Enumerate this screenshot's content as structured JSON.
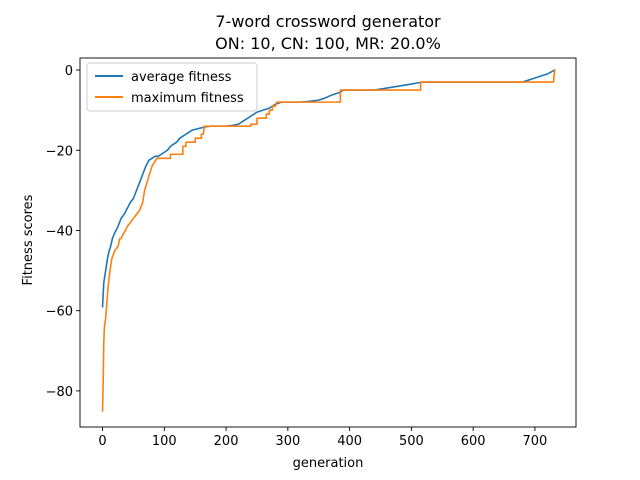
{
  "chart_data": {
    "type": "line",
    "title_line1": "7-word crossword generator",
    "title_line2": "ON: 10, CN: 100, MR: 20.0%",
    "xlabel": "generation",
    "ylabel": "Fitness scores",
    "xlim": [
      -36.5,
      766.5
    ],
    "ylim": [
      -89,
      3
    ],
    "xticks": [
      0,
      100,
      200,
      300,
      400,
      500,
      600,
      700
    ],
    "yticks": [
      0,
      -20,
      -40,
      -60,
      -80
    ],
    "ytick_labels": [
      "0",
      "−20",
      "−40",
      "−60",
      "−80"
    ],
    "grid": false,
    "legend_position": "top-left",
    "series": [
      {
        "name": "average fitness",
        "color": "#1f77b4",
        "points": [
          [
            0,
            -59
          ],
          [
            1,
            -56
          ],
          [
            2,
            -53
          ],
          [
            4,
            -51
          ],
          [
            6,
            -49
          ],
          [
            8,
            -47
          ],
          [
            10,
            -45.5
          ],
          [
            13,
            -44
          ],
          [
            16,
            -42
          ],
          [
            20,
            -40.5
          ],
          [
            25,
            -39
          ],
          [
            30,
            -37
          ],
          [
            35,
            -36
          ],
          [
            40,
            -34.5
          ],
          [
            45,
            -33
          ],
          [
            50,
            -32
          ],
          [
            55,
            -30
          ],
          [
            60,
            -28
          ],
          [
            65,
            -26
          ],
          [
            70,
            -24
          ],
          [
            75,
            -22.5
          ],
          [
            80,
            -22
          ],
          [
            85,
            -21.5
          ],
          [
            90,
            -21.5
          ],
          [
            95,
            -21
          ],
          [
            100,
            -20.5
          ],
          [
            105,
            -20
          ],
          [
            110,
            -19
          ],
          [
            115,
            -18.5
          ],
          [
            120,
            -18
          ],
          [
            125,
            -17
          ],
          [
            130,
            -16.5
          ],
          [
            135,
            -16
          ],
          [
            140,
            -15.5
          ],
          [
            145,
            -15
          ],
          [
            150,
            -14.8
          ],
          [
            155,
            -14.6
          ],
          [
            160,
            -14.4
          ],
          [
            165,
            -14.2
          ],
          [
            175,
            -14
          ],
          [
            200,
            -14
          ],
          [
            210,
            -13.8
          ],
          [
            220,
            -13.5
          ],
          [
            230,
            -12.5
          ],
          [
            240,
            -11.5
          ],
          [
            250,
            -10.5
          ],
          [
            260,
            -10
          ],
          [
            270,
            -9.5
          ],
          [
            280,
            -8.5
          ],
          [
            290,
            -8
          ],
          [
            300,
            -8
          ],
          [
            320,
            -8
          ],
          [
            335,
            -7.8
          ],
          [
            350,
            -7.5
          ],
          [
            360,
            -7
          ],
          [
            370,
            -6.3
          ],
          [
            380,
            -5.8
          ],
          [
            385,
            -5.5
          ],
          [
            390,
            -5
          ],
          [
            420,
            -5
          ],
          [
            440,
            -5
          ],
          [
            460,
            -4.5
          ],
          [
            480,
            -4
          ],
          [
            500,
            -3.5
          ],
          [
            510,
            -3.2
          ],
          [
            520,
            -3
          ],
          [
            600,
            -3
          ],
          [
            680,
            -3
          ],
          [
            700,
            -2
          ],
          [
            720,
            -1
          ],
          [
            732,
            0
          ]
        ]
      },
      {
        "name": "maximum fitness",
        "color": "#ff7f0e",
        "points": [
          [
            0,
            -85
          ],
          [
            1,
            -78
          ],
          [
            2,
            -68
          ],
          [
            3,
            -64
          ],
          [
            5,
            -62
          ],
          [
            7,
            -58
          ],
          [
            9,
            -54
          ],
          [
            12,
            -50
          ],
          [
            15,
            -47
          ],
          [
            20,
            -45
          ],
          [
            25,
            -44
          ],
          [
            28,
            -42
          ],
          [
            30,
            -42
          ],
          [
            33,
            -41
          ],
          [
            37,
            -40
          ],
          [
            40,
            -39
          ],
          [
            45,
            -38
          ],
          [
            50,
            -37
          ],
          [
            55,
            -36
          ],
          [
            60,
            -35
          ],
          [
            65,
            -33
          ],
          [
            68,
            -30
          ],
          [
            72,
            -28
          ],
          [
            76,
            -26
          ],
          [
            80,
            -24
          ],
          [
            84,
            -23
          ],
          [
            88,
            -22
          ],
          [
            100,
            -22
          ],
          [
            110,
            -22
          ],
          [
            110,
            -21
          ],
          [
            130,
            -21
          ],
          [
            130,
            -19
          ],
          [
            135,
            -19
          ],
          [
            135,
            -18
          ],
          [
            150,
            -18
          ],
          [
            150,
            -17
          ],
          [
            160,
            -17
          ],
          [
            160,
            -16
          ],
          [
            163,
            -16
          ],
          [
            165,
            -14
          ],
          [
            240,
            -14
          ],
          [
            240,
            -13.5
          ],
          [
            250,
            -13.5
          ],
          [
            250,
            -12
          ],
          [
            265,
            -12
          ],
          [
            265,
            -11
          ],
          [
            270,
            -11
          ],
          [
            270,
            -10
          ],
          [
            275,
            -10
          ],
          [
            275,
            -9
          ],
          [
            280,
            -9
          ],
          [
            282,
            -8
          ],
          [
            385,
            -8
          ],
          [
            385,
            -5
          ],
          [
            515,
            -5
          ],
          [
            515,
            -3
          ],
          [
            730,
            -3
          ],
          [
            732,
            0
          ]
        ]
      }
    ]
  }
}
